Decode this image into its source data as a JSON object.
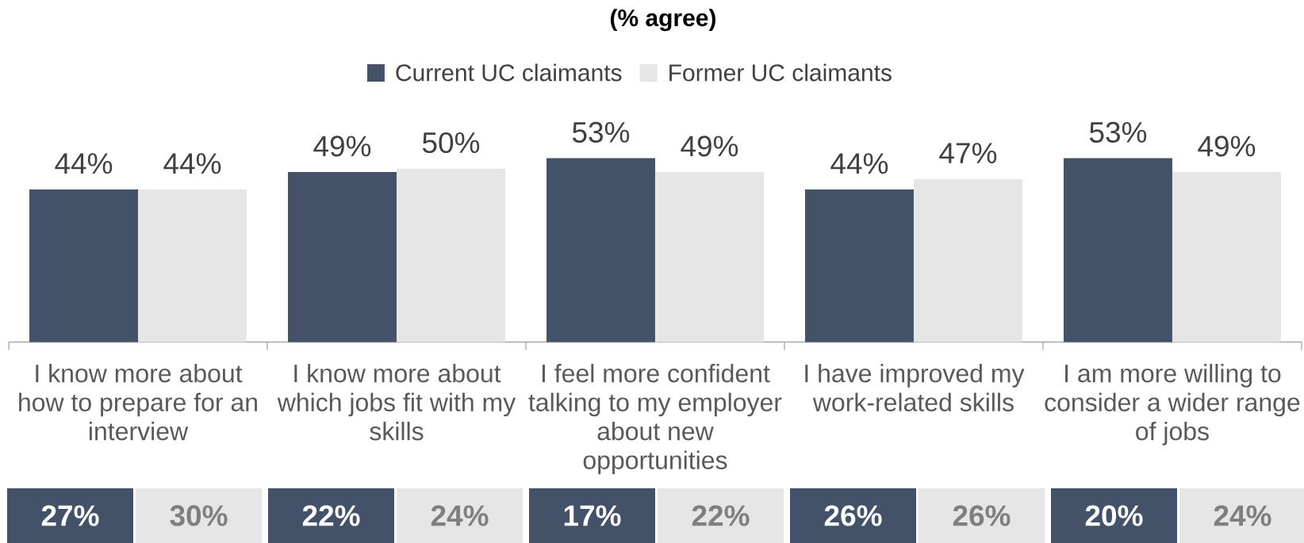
{
  "chart_data": [
    {
      "type": "bar",
      "title": "(% agree)",
      "legend": "top",
      "categories": [
        "I know more about how to prepare for an interview",
        "I know more about which jobs fit with my skills",
        "I feel more confident talking to my employer about new opportunities",
        "I have improved my work-related skills",
        "I am more willing to consider a wider range of jobs"
      ],
      "series": [
        {
          "name": "Current UC claimants",
          "color": "#435269",
          "values": [
            44,
            49,
            53,
            44,
            53
          ],
          "value_labels": [
            "44%",
            "49%",
            "53%",
            "44%",
            "53%"
          ]
        },
        {
          "name": "Former UC claimants",
          "color": "#e6e6e6",
          "values": [
            44,
            50,
            49,
            47,
            49
          ],
          "value_labels": [
            "44%",
            "50%",
            "49%",
            "47%",
            "49%"
          ]
        }
      ]
    },
    {
      "type": "heatmap",
      "categories": [
        null,
        null,
        null,
        null,
        null,
        null,
        null,
        null,
        null,
        null
      ],
      "y_categories": [
        null
      ],
      "cells": [
        [
          27,
          30,
          22,
          24,
          17,
          22,
          26,
          26,
          20,
          24
        ]
      ],
      "cell_labels": [
        [
          "27%",
          "30%",
          "22%",
          "24%",
          "17%",
          "22%",
          "26%",
          "26%",
          "20%",
          "24%"
        ]
      ],
      "colors": [
        "#435269",
        "#e6e6e6",
        "#435269",
        "#e6e6e6",
        "#435269",
        "#e6e6e6",
        "#435269",
        "#e6e6e6",
        "#435269",
        "#e6e6e6"
      ]
    }
  ]
}
